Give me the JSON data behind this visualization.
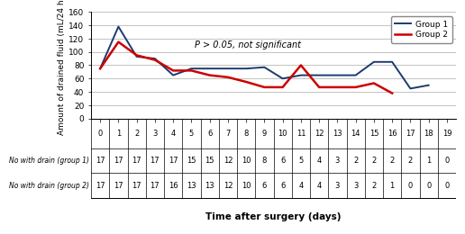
{
  "group1_x": [
    0,
    1,
    2,
    3,
    4,
    5,
    6,
    7,
    8,
    9,
    10,
    11,
    12,
    13,
    14,
    15,
    16,
    17,
    18
  ],
  "group1_y": [
    75,
    138,
    93,
    90,
    65,
    75,
    75,
    75,
    75,
    77,
    60,
    65,
    65,
    65,
    65,
    85,
    85,
    45,
    50
  ],
  "group2_x": [
    0,
    1,
    2,
    3,
    4,
    5,
    6,
    7,
    8,
    9,
    10,
    11,
    12,
    13,
    14,
    15,
    16
  ],
  "group2_y": [
    75,
    115,
    95,
    88,
    72,
    72,
    65,
    62,
    55,
    47,
    47,
    80,
    47,
    47,
    47,
    53,
    38
  ],
  "no_drain_g1": [
    17,
    17,
    17,
    17,
    17,
    15,
    15,
    12,
    10,
    8,
    6,
    5,
    4,
    3,
    2,
    2,
    2,
    2,
    1,
    0
  ],
  "no_drain_g2": [
    17,
    17,
    17,
    17,
    16,
    13,
    13,
    12,
    10,
    6,
    6,
    4,
    4,
    3,
    3,
    2,
    1,
    0,
    0,
    0
  ],
  "x_ticks": [
    0,
    1,
    2,
    3,
    4,
    5,
    6,
    7,
    8,
    9,
    10,
    11,
    12,
    13,
    14,
    15,
    16,
    17,
    18,
    19
  ],
  "ylim": [
    0,
    160
  ],
  "yticks": [
    0,
    20,
    40,
    60,
    80,
    100,
    120,
    140,
    160
  ],
  "ylabel": "Amount of drained fluid (mL/24 h)",
  "xlabel": "Time after surgery (days)",
  "annotation": "P > 0.05, not significant",
  "group1_color": "#1a3b6e",
  "group2_color": "#cc0000",
  "group1_label": "Group 1",
  "group2_label": "Group 2",
  "row1_label": "No with drain (group 1)",
  "row2_label": "No with drain (group 2)",
  "background_color": "#ffffff",
  "grid_color": "#aaaaaa",
  "xlim": [
    -0.5,
    19.5
  ]
}
